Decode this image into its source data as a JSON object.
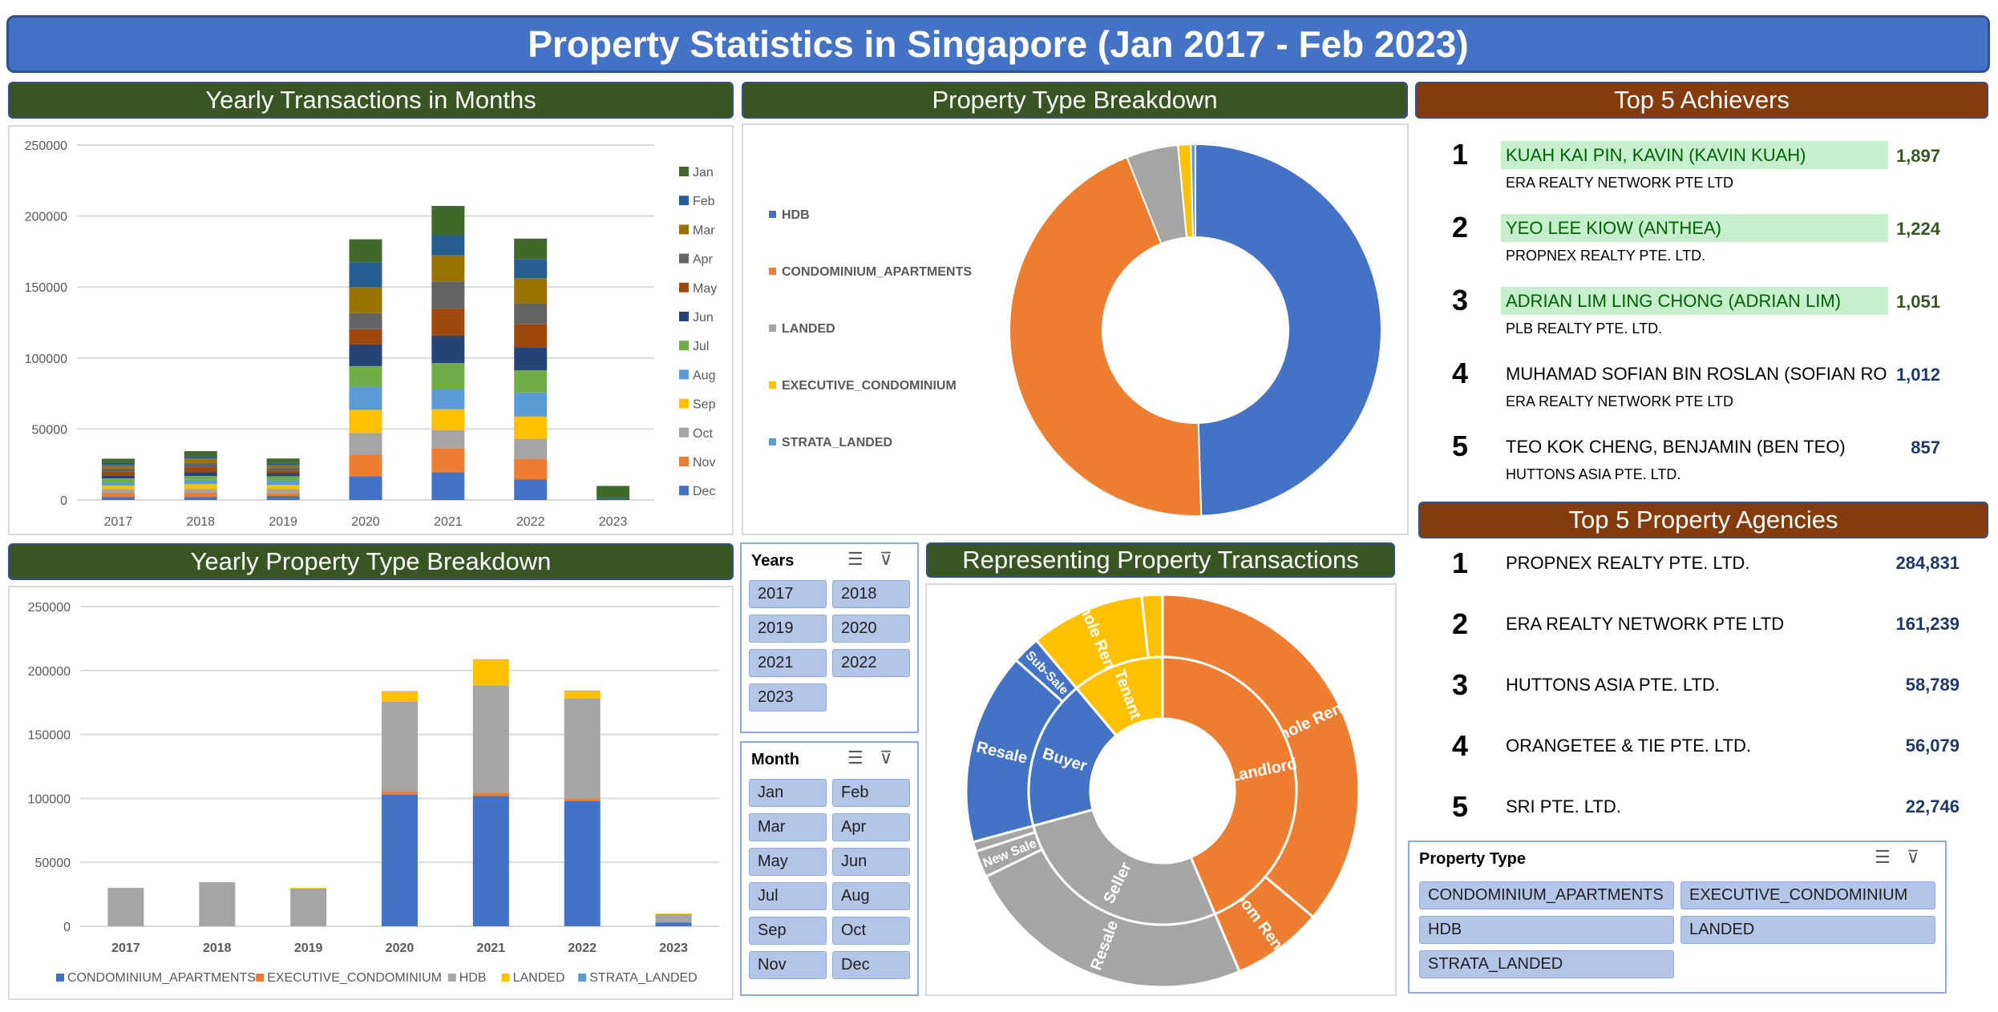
{
  "title": "Property Statistics in Singapore (Jan 2017 - Feb 2023)",
  "headers": {
    "yearly_months": "Yearly Transactions in Months",
    "type_breakdown": "Property Type Breakdown",
    "achievers": "Top 5 Achievers",
    "yearly_type": "Yearly Property Type Breakdown",
    "representing": "Representing Property Transactions",
    "agencies": "Top 5 Property Agencies"
  },
  "colors": {
    "header_green": "#375623",
    "header_brown": "#843c0c",
    "title_blue": "#4472c4",
    "highlight": "#c6efce"
  },
  "chart_data": [
    {
      "type": "bar",
      "stacked": true,
      "ylim": [
        0,
        250000
      ],
      "yticks": [
        "0",
        "50000",
        "100000",
        "150000",
        "200000",
        "250000"
      ],
      "categories": [
        "2017",
        "2018",
        "2019",
        "2020",
        "2021",
        "2022",
        "2023"
      ],
      "legend": "right",
      "grid": true,
      "series": [
        {
          "name": "Dec",
          "color": "#4472c4",
          "values": [
            2200,
            2200,
            2800,
            16700,
            19500,
            14400,
            null
          ]
        },
        {
          "name": "Nov",
          "color": "#ed7d31",
          "values": [
            2900,
            2900,
            2200,
            15200,
            16800,
            14600,
            null
          ]
        },
        {
          "name": "Oct",
          "color": "#a5a5a5",
          "values": [
            2600,
            2600,
            2600,
            15400,
            13000,
            14100,
            null
          ]
        },
        {
          "name": "Sep",
          "color": "#ffc000",
          "values": [
            2400,
            3500,
            2900,
            16100,
            14600,
            15700,
            null
          ]
        },
        {
          "name": "Aug",
          "color": "#5b9bd5",
          "values": [
            2900,
            3000,
            3300,
            16500,
            14000,
            16900,
            null
          ]
        },
        {
          "name": "Jul",
          "color": "#70ad47",
          "values": [
            2200,
            2700,
            2900,
            14400,
            18500,
            15700,
            null
          ]
        },
        {
          "name": "Jun",
          "color": "#264478",
          "values": [
            2200,
            2800,
            2200,
            15200,
            19300,
            16300,
            null
          ]
        },
        {
          "name": "May",
          "color": "#9e480e",
          "values": [
            2600,
            3400,
            1900,
            10800,
            19100,
            16300,
            null
          ]
        },
        {
          "name": "Apr",
          "color": "#636363",
          "values": [
            2200,
            3300,
            2200,
            11300,
            18900,
            14600,
            null
          ]
        },
        {
          "name": "Mar",
          "color": "#997300",
          "values": [
            2200,
            2800,
            1600,
            18300,
            18600,
            17600,
            null
          ]
        },
        {
          "name": "Feb",
          "color": "#255e91",
          "values": [
            2200,
            1800,
            1800,
            17600,
            14200,
            13500,
            1300
          ]
        },
        {
          "name": "Jan",
          "color": "#43682b",
          "values": [
            2500,
            3400,
            2800,
            16100,
            20600,
            14400,
            8600
          ]
        }
      ]
    },
    {
      "type": "pie",
      "donut": true,
      "legend": "left",
      "slices": [
        {
          "name": "HDB",
          "color": "#4472c4",
          "value": 49.5
        },
        {
          "name": "CONDOMINIUM_APARTMENTS",
          "color": "#ed7d31",
          "value": 44.5
        },
        {
          "name": "LANDED",
          "color": "#a5a5a5",
          "value": 4.5
        },
        {
          "name": "EXECUTIVE_CONDOMINIUM",
          "color": "#ffc000",
          "value": 1.1
        },
        {
          "name": "STRATA_LANDED",
          "color": "#5b9bd5",
          "value": 0.4
        }
      ]
    },
    {
      "type": "bar",
      "stacked": true,
      "ylim": [
        0,
        250000
      ],
      "yticks": [
        "0",
        "50000",
        "100000",
        "150000",
        "200000",
        "250000"
      ],
      "categories": [
        "2017",
        "2018",
        "2019",
        "2020",
        "2021",
        "2022",
        "2023"
      ],
      "legend": "bottom",
      "grid": true,
      "series": [
        {
          "name": "CONDOMINIUM_APARTMENTS",
          "color": "#4472c4",
          "values": [
            0,
            0,
            0,
            103000,
            102000,
            98000,
            3000
          ]
        },
        {
          "name": "EXECUTIVE_CONDOMINIUM",
          "color": "#ed7d31",
          "values": [
            0,
            0,
            0,
            2500,
            2500,
            2000,
            0
          ]
        },
        {
          "name": "HDB",
          "color": "#a5a5a5",
          "values": [
            30000,
            34500,
            29500,
            70000,
            84000,
            78000,
            6500
          ]
        },
        {
          "name": "LANDED",
          "color": "#ffc000",
          "values": [
            0,
            0,
            500,
            8000,
            20000,
            6000,
            500
          ]
        },
        {
          "name": "STRATA_LANDED",
          "color": "#5b9bd5",
          "values": [
            0,
            0,
            0,
            300,
            300,
            300,
            0
          ]
        }
      ]
    },
    {
      "type": "sunburst",
      "rings": [
        {
          "name": "Landlord",
          "color": "#ed7d31",
          "children": [
            {
              "name": "Whole Rental",
              "value": 36.1
            },
            {
              "name": "Room Rental",
              "value": 7.5
            }
          ]
        },
        {
          "name": "Seller",
          "color": "#a5a5a5",
          "children": [
            {
              "name": "Resale",
              "value": 24.2
            },
            {
              "name": "New Sale",
              "value": 2.2
            },
            {
              "name": "Sub-Sale",
              "value": 0.8
            }
          ]
        },
        {
          "name": "Buyer",
          "color": "#4472c4",
          "children": [
            {
              "name": "Resale",
              "value": 15.8
            },
            {
              "name": "Sub-Sale",
              "value": 2.3
            }
          ]
        },
        {
          "name": "Tenant",
          "color": "#ffc000",
          "children": [
            {
              "name": "Whole Rental",
              "value": 9.4
            },
            {
              "name": "",
              "value": 1.7
            }
          ]
        }
      ]
    }
  ],
  "achievers": [
    {
      "rank": "1",
      "name": "KUAH KAI PIN, KAVIN (KAVIN KUAH)",
      "agency": "ERA REALTY NETWORK PTE LTD",
      "value": "1,897",
      "highlight": true
    },
    {
      "rank": "2",
      "name": "YEO LEE KIOW (ANTHEA)",
      "agency": "PROPNEX REALTY PTE. LTD.",
      "value": "1,224",
      "highlight": true
    },
    {
      "rank": "3",
      "name": "ADRIAN LIM LING CHONG (ADRIAN LIM)",
      "agency": "PLB REALTY PTE. LTD.",
      "value": "1,051",
      "highlight": true
    },
    {
      "rank": "4",
      "name": "MUHAMAD SOFIAN BIN ROSLAN (SOFIAN RO",
      "agency": "ERA REALTY NETWORK PTE LTD",
      "value": "1,012",
      "highlight": false
    },
    {
      "rank": "5",
      "name": "TEO KOK CHENG, BENJAMIN (BEN TEO)",
      "agency": "HUTTONS ASIA PTE. LTD.",
      "value": "857",
      "highlight": false
    }
  ],
  "agencies": [
    {
      "rank": "1",
      "name": "PROPNEX REALTY PTE. LTD.",
      "value": "284,831"
    },
    {
      "rank": "2",
      "name": "ERA REALTY NETWORK PTE LTD",
      "value": "161,239"
    },
    {
      "rank": "3",
      "name": "HUTTONS ASIA PTE. LTD.",
      "value": "58,789"
    },
    {
      "rank": "4",
      "name": "ORANGETEE & TIE PTE. LTD.",
      "value": "56,079"
    },
    {
      "rank": "5",
      "name": "SRI PTE. LTD.",
      "value": "22,746"
    }
  ],
  "slicers": {
    "years": {
      "title": "Years",
      "items": [
        "2017",
        "2018",
        "2019",
        "2020",
        "2021",
        "2022",
        "2023"
      ]
    },
    "month": {
      "title": "Month",
      "items": [
        "Jan",
        "Feb",
        "Mar",
        "Apr",
        "May",
        "Jun",
        "Jul",
        "Aug",
        "Sep",
        "Oct",
        "Nov",
        "Dec"
      ]
    },
    "property_type": {
      "title": "Property Type",
      "items": [
        "CONDOMINIUM_APARTMENTS",
        "EXECUTIVE_CONDOMINIUM",
        "HDB",
        "LANDED",
        "STRATA_LANDED"
      ]
    }
  }
}
